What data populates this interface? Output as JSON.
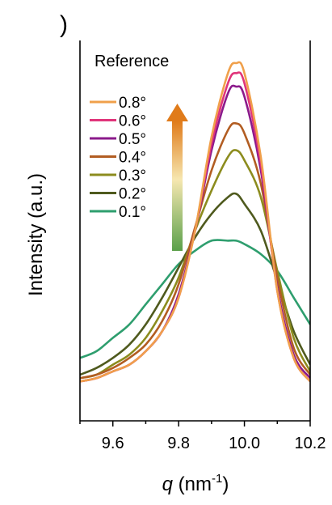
{
  "panel_label": ")",
  "chart_data": {
    "type": "line",
    "title": "",
    "legend_title": "Reference",
    "legend_position": "top-left",
    "xlabel_symbol": "q",
    "xlabel_unit_open": " (nm",
    "xlabel_unit_exp": "-1",
    "xlabel_unit_close": ")",
    "ylabel": "Intensity (a.u.)",
    "xlim": [
      9.5,
      10.2
    ],
    "ylim": [
      0,
      1.0
    ],
    "xticks": [
      9.6,
      9.8,
      10.0,
      10.2
    ],
    "xtick_labels": [
      "9.6",
      "9.8",
      "10.0",
      "10.2"
    ],
    "grid": false,
    "arrow": {
      "direction": "up",
      "color_top": "#e07b1a",
      "color_bottom": "#5aa04a"
    },
    "x": [
      9.5,
      9.55,
      9.6,
      9.65,
      9.7,
      9.75,
      9.8,
      9.85,
      9.9,
      9.95,
      9.975,
      10.0,
      10.05,
      10.1,
      10.15,
      10.2
    ],
    "series": [
      {
        "name": "0.8°",
        "color": "#f0a04b",
        "values": [
          0.05,
          0.06,
          0.08,
          0.1,
          0.14,
          0.2,
          0.3,
          0.5,
          0.78,
          0.97,
          1.0,
          0.97,
          0.72,
          0.32,
          0.12,
          0.05
        ]
      },
      {
        "name": "0.6°",
        "color": "#e0357a",
        "values": [
          0.05,
          0.06,
          0.08,
          0.1,
          0.14,
          0.2,
          0.3,
          0.5,
          0.76,
          0.94,
          0.97,
          0.94,
          0.7,
          0.32,
          0.12,
          0.05
        ]
      },
      {
        "name": "0.5°",
        "color": "#8b1a8b",
        "values": [
          0.05,
          0.06,
          0.08,
          0.1,
          0.14,
          0.2,
          0.31,
          0.5,
          0.74,
          0.91,
          0.93,
          0.9,
          0.68,
          0.33,
          0.13,
          0.06
        ]
      },
      {
        "name": "0.4°",
        "color": "#b25d22",
        "values": [
          0.06,
          0.07,
          0.09,
          0.12,
          0.16,
          0.23,
          0.34,
          0.51,
          0.68,
          0.8,
          0.82,
          0.79,
          0.64,
          0.36,
          0.15,
          0.07
        ]
      },
      {
        "name": "0.3°",
        "color": "#8c8c1e",
        "values": [
          0.06,
          0.07,
          0.1,
          0.13,
          0.18,
          0.26,
          0.36,
          0.5,
          0.62,
          0.72,
          0.74,
          0.71,
          0.6,
          0.38,
          0.18,
          0.08
        ]
      },
      {
        "name": "0.2°",
        "color": "#4f5a1e",
        "values": [
          0.07,
          0.09,
          0.12,
          0.16,
          0.22,
          0.3,
          0.39,
          0.48,
          0.55,
          0.6,
          0.61,
          0.58,
          0.5,
          0.35,
          0.2,
          0.1
        ]
      },
      {
        "name": "0.1°",
        "color": "#2e9e6e",
        "values": [
          0.12,
          0.14,
          0.18,
          0.22,
          0.28,
          0.34,
          0.4,
          0.44,
          0.47,
          0.47,
          0.47,
          0.46,
          0.43,
          0.38,
          0.3,
          0.22
        ]
      }
    ]
  }
}
